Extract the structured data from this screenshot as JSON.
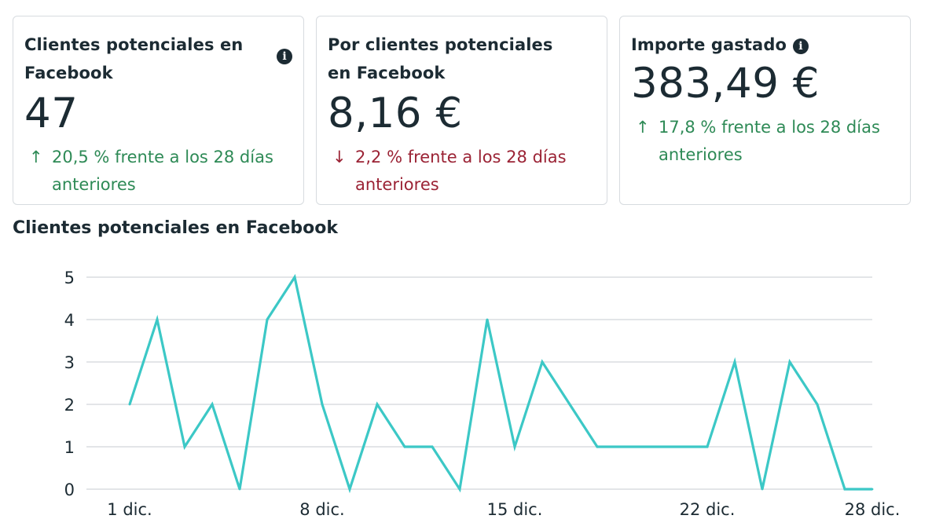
{
  "cards": [
    {
      "title": "Clientes potenciales en Facebook",
      "value": "47",
      "change_arrow": "↑",
      "change_text": "20,5 % frente a los 28 días anteriores",
      "trend": "up",
      "info_icon": "info-icon"
    },
    {
      "title": "Por clientes potenciales en Facebook",
      "value": "8,16 €",
      "change_arrow": "↓",
      "change_text": "2,2 % frente a los 28 días anteriores",
      "trend": "down"
    },
    {
      "title": "Importe gastado",
      "value": "383,49 €",
      "change_arrow": "↑",
      "change_text": "17,8 % frente a los 28 días anteriores",
      "trend": "up",
      "info_icon": "info-icon"
    }
  ],
  "colors": {
    "up": "#2e8a56",
    "down": "#9b2335",
    "line": "#3cc8c6",
    "grid": "#e3e5e8"
  },
  "chart_data": {
    "type": "line",
    "title": "Clientes potenciales en Facebook",
    "xlabel": "",
    "ylabel": "",
    "x": [
      1,
      2,
      3,
      4,
      5,
      6,
      7,
      8,
      9,
      10,
      11,
      12,
      13,
      14,
      15,
      16,
      17,
      18,
      19,
      20,
      21,
      22,
      23,
      24,
      25,
      26,
      27,
      28
    ],
    "x_tick_values": [
      1,
      8,
      15,
      22,
      28
    ],
    "x_tick_labels": [
      "1 dic.",
      "8 dic.",
      "15 dic.",
      "22 dic.",
      "28 dic."
    ],
    "y_ticks": [
      0,
      1,
      2,
      3,
      4,
      5
    ],
    "ylim": [
      0,
      5
    ],
    "grid": true,
    "series": [
      {
        "values": [
          2,
          4,
          1,
          2,
          0,
          4,
          5,
          2,
          0,
          2,
          1,
          1,
          0,
          4,
          1,
          3,
          2,
          1,
          1,
          1,
          1,
          1,
          3,
          0,
          3,
          2,
          0,
          0
        ]
      }
    ]
  }
}
